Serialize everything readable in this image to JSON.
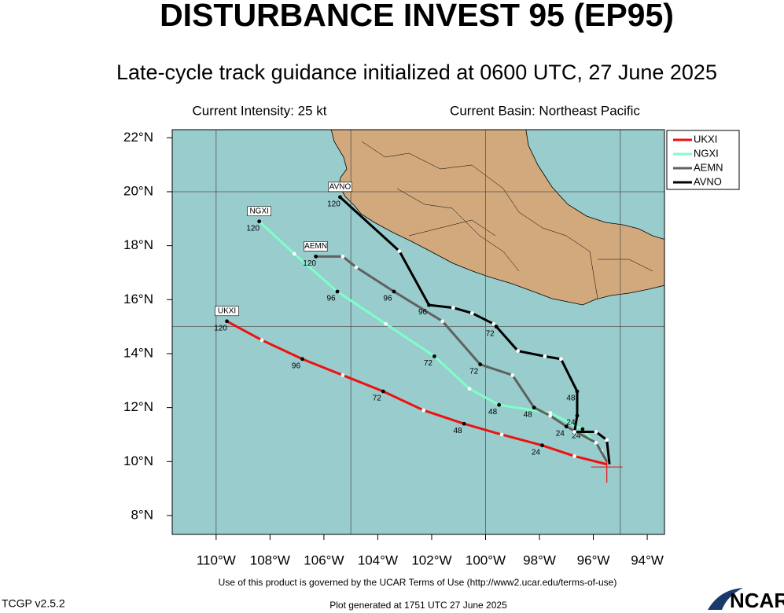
{
  "chart_data": {
    "type": "track_map",
    "title": "DISTURBANCE INVEST 95 (EP95)",
    "subtitle": "Late-cycle track guidance initialized at 0600 UTC, 27 June 2025",
    "intensity": "Current Intensity: 25 kt",
    "basin": "Current Basin: Northeast Pacific",
    "xlim": [
      -111.63,
      -93.36
    ],
    "ylim": [
      7.3,
      22.3
    ],
    "xticks": [
      {
        "value": -110,
        "label": "110°W"
      },
      {
        "value": -108,
        "label": "108°W"
      },
      {
        "value": -106,
        "label": "106°W"
      },
      {
        "value": -104,
        "label": "104°W"
      },
      {
        "value": -102,
        "label": "102°W"
      },
      {
        "value": -100,
        "label": "100°W"
      },
      {
        "value": -98,
        "label": "98°W"
      },
      {
        "value": -96,
        "label": "96°W"
      },
      {
        "value": -94,
        "label": "94°W"
      }
    ],
    "yticks": [
      {
        "value": 8,
        "label": "8°N"
      },
      {
        "value": 10,
        "label": "10°N"
      },
      {
        "value": 12,
        "label": "12°N"
      },
      {
        "value": 14,
        "label": "14°N"
      },
      {
        "value": 16,
        "label": "16°N"
      },
      {
        "value": 18,
        "label": "18°N"
      },
      {
        "value": 20,
        "label": "20°N"
      },
      {
        "value": 22,
        "label": "22°N"
      }
    ],
    "grid_lon": [
      -110,
      -105,
      -100,
      -95
    ],
    "grid_lat": [
      15,
      20
    ],
    "initial_position": {
      "lon": -95.5,
      "lat": 9.8
    },
    "legend": "right",
    "series": [
      {
        "name": "UKXI",
        "color": "#ee1111",
        "lon": [
          -95.5,
          -96.7,
          -97.9,
          -99.4,
          -100.8,
          -102.3,
          -103.8,
          -105.3,
          -106.8,
          -108.3,
          -109.6
        ],
        "lat": [
          9.9,
          10.2,
          10.6,
          11.0,
          11.4,
          11.9,
          12.6,
          13.2,
          13.8,
          14.5,
          15.2
        ],
        "hours": [
          null,
          null,
          24,
          null,
          48,
          null,
          72,
          null,
          96,
          null,
          120
        ]
      },
      {
        "name": "NGXI",
        "color": "#7fffc8",
        "lon": [
          -95.5,
          -95.7,
          -96.4,
          -97.6,
          -99.5,
          -100.6,
          -101.9,
          -103.7,
          -105.5,
          -107.1,
          -108.4
        ],
        "lat": [
          10.0,
          10.4,
          11.2,
          11.8,
          12.1,
          12.7,
          13.9,
          15.1,
          16.3,
          17.7,
          18.9
        ],
        "hours": [
          null,
          null,
          24,
          null,
          48,
          null,
          72,
          null,
          96,
          null,
          120
        ]
      },
      {
        "name": "AEMN",
        "color": "#606060",
        "lon": [
          -95.5,
          -95.9,
          -97.0,
          -97.6,
          -98.2,
          -99.0,
          -100.2,
          -101.6,
          -103.4,
          -104.8,
          -105.3,
          -106.3
        ],
        "lat": [
          10.0,
          10.7,
          11.3,
          11.7,
          12.0,
          13.2,
          13.6,
          15.2,
          16.3,
          17.2,
          17.6,
          17.6
        ],
        "hours": [
          null,
          null,
          24,
          null,
          48,
          null,
          72,
          null,
          96,
          null,
          null,
          120
        ]
      },
      {
        "name": "AVNO",
        "color": "#000000",
        "lon": [
          -95.4,
          -95.5,
          -95.9,
          -96.7,
          -96.6,
          -96.6,
          -97.2,
          -97.8,
          -98.8,
          -99.6,
          -99.7,
          -100.5,
          -101.2,
          -102.1,
          -103.2,
          -105.4
        ],
        "lat": [
          9.9,
          10.8,
          11.1,
          11.1,
          11.7,
          12.6,
          13.8,
          13.9,
          14.1,
          15.0,
          15.1,
          15.5,
          15.7,
          15.8,
          17.8,
          19.8
        ],
        "hours": [
          null,
          null,
          null,
          null,
          24,
          48,
          null,
          null,
          null,
          72,
          null,
          null,
          null,
          96,
          null,
          120
        ]
      }
    ],
    "terms": "Use of this product is governed by the UCAR Terms of Use (http://www2.ucar.edu/terms-of-use)",
    "version": "TCGP v2.5.2",
    "generated": "Plot generated at 1751 UTC  27 June 2025",
    "logo": "NCAR"
  }
}
